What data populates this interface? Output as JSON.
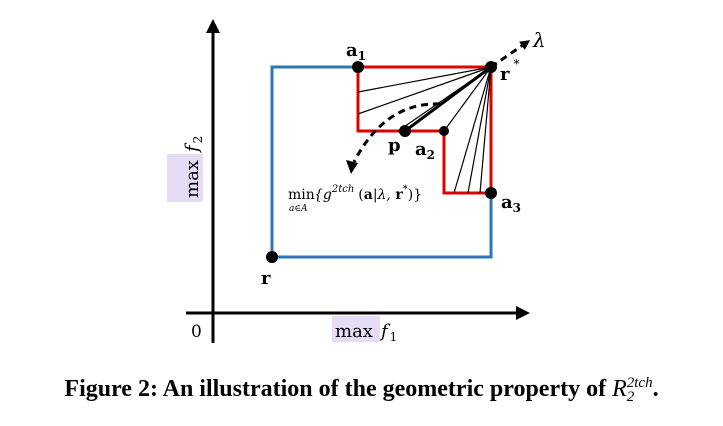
{
  "axes": {
    "origin": "0",
    "x_label": "max",
    "x_var": "f",
    "x_sub": "1",
    "y_label": "max",
    "y_var": "f",
    "y_sub": "2"
  },
  "points": {
    "a1": {
      "name": "a",
      "sub": "1"
    },
    "a2": {
      "name": "a",
      "sub": "2"
    },
    "a3": {
      "name": "a",
      "sub": "3"
    },
    "p": "p",
    "r": "r",
    "r_star": {
      "name": "r",
      "sup": "*"
    }
  },
  "direction_label": "λ",
  "annotation": {
    "min": "min",
    "min_sub": "a∈A",
    "open": "{g",
    "sup": "2tch",
    "mid": "(",
    "a_bold": "a",
    "bar": "|λ, ",
    "r_bold": "r",
    "r_sup": "*",
    "close": ")}"
  },
  "caption": {
    "text": "Figure 2: An illustration of the geometric property of ",
    "math_base": "R",
    "math_sup": "2tch",
    "math_sub": "2",
    "end": "."
  },
  "colors": {
    "blue_box": "#2e75b6",
    "red_region": "#e00000",
    "highlight": "#e6dcf5"
  }
}
